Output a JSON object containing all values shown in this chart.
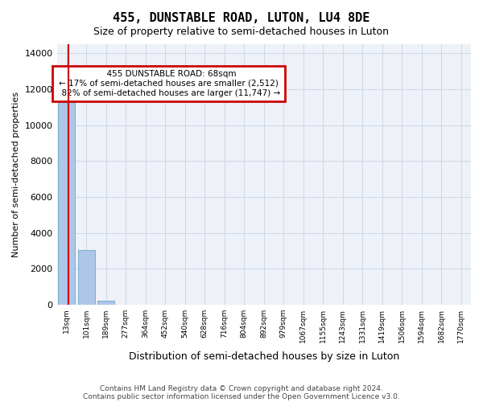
{
  "title": "455, DUNSTABLE ROAD, LUTON, LU4 8DE",
  "subtitle": "Size of property relative to semi-detached houses in Luton",
  "xlabel": "Distribution of semi-detached houses by size in Luton",
  "ylabel": "Number of semi-detached properties",
  "footnote1": "Contains HM Land Registry data © Crown copyright and database right 2024.",
  "footnote2": "Contains public sector information licensed under the Open Government Licence v3.0.",
  "property_size": 68,
  "property_label": "455 DUNSTABLE ROAD: 68sqm",
  "smaller_pct": 17,
  "smaller_count": 2512,
  "larger_pct": 82,
  "larger_count": 11747,
  "bar_color": "#aec6e8",
  "bar_edge_color": "#7aaed0",
  "red_line_color": "#cc0000",
  "annotation_box_color": "#cc0000",
  "grid_color": "#d0d8e8",
  "background_color": "#eef2f8",
  "ylim": [
    0,
    14500
  ],
  "yticks": [
    0,
    2000,
    4000,
    6000,
    8000,
    10000,
    12000,
    14000
  ],
  "categories": [
    "13sqm",
    "101sqm",
    "189sqm",
    "277sqm",
    "364sqm",
    "452sqm",
    "540sqm",
    "628sqm",
    "716sqm",
    "804sqm",
    "892sqm",
    "979sqm",
    "1067sqm",
    "1155sqm",
    "1243sqm",
    "1331sqm",
    "1419sqm",
    "1506sqm",
    "1594sqm",
    "1682sqm",
    "1770sqm"
  ],
  "values": [
    11350,
    3050,
    200,
    10,
    2,
    1,
    0,
    0,
    0,
    0,
    0,
    0,
    0,
    0,
    0,
    0,
    0,
    0,
    0,
    0,
    0
  ],
  "bin_min": 13,
  "bin_max": 101
}
